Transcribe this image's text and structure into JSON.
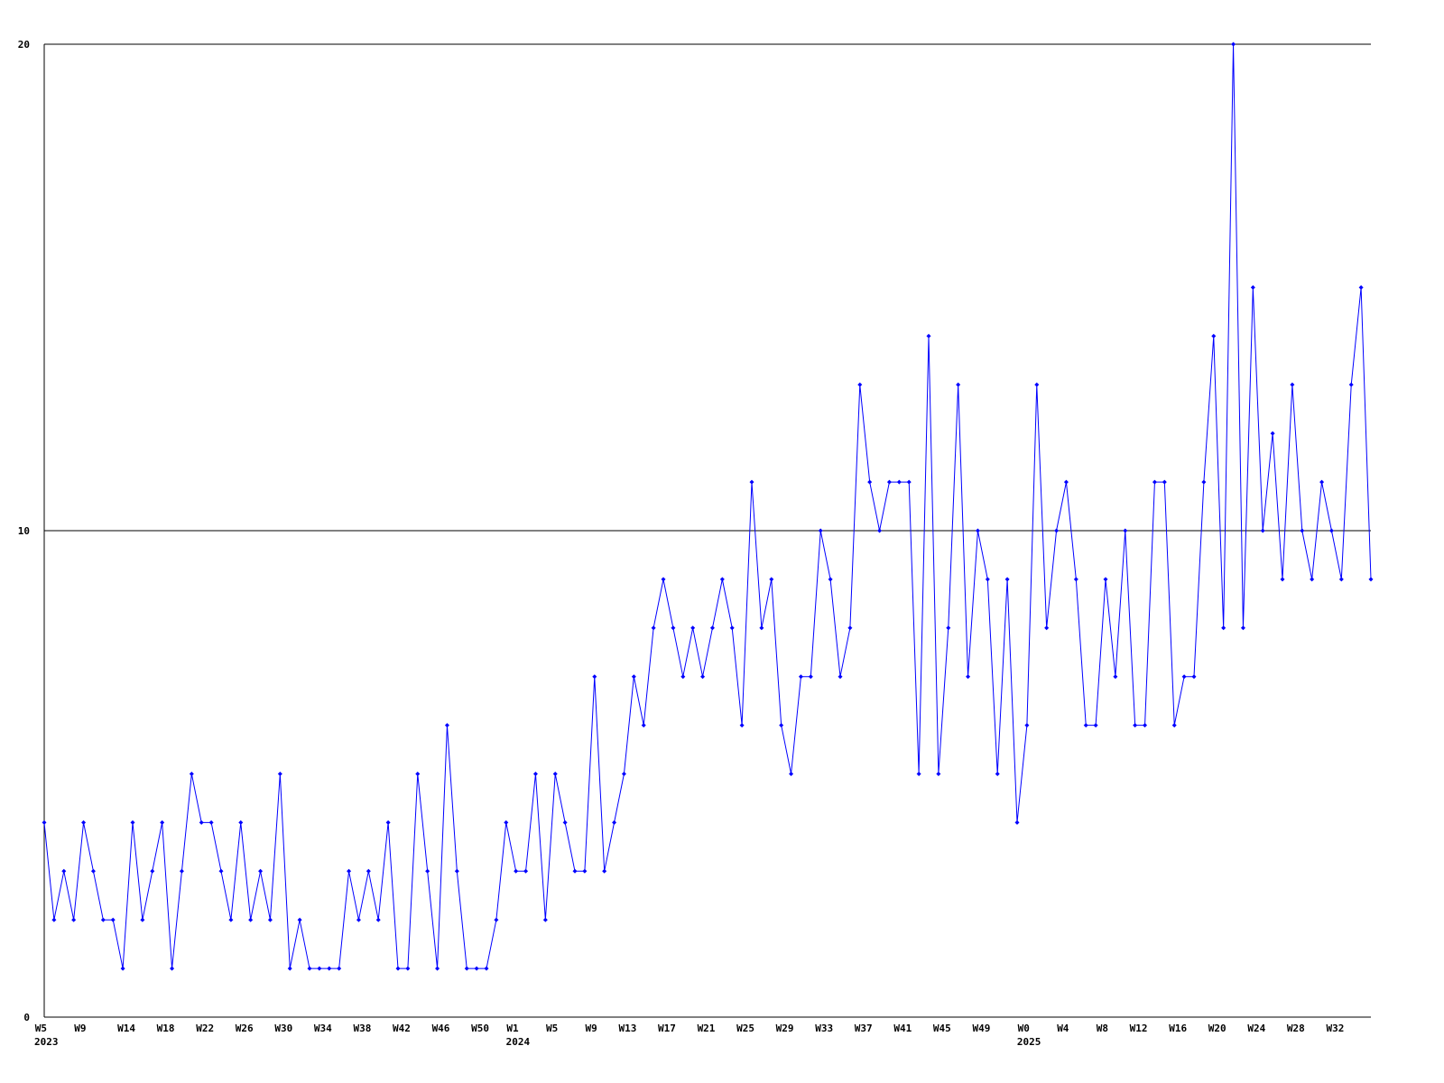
{
  "chart_data": {
    "type": "line",
    "categories": [
      "W5",
      null,
      null,
      null,
      "W9",
      null,
      null,
      null,
      null,
      "W14",
      null,
      null,
      null,
      "W18",
      null,
      null,
      null,
      "W22",
      null,
      null,
      null,
      "W26",
      null,
      null,
      null,
      "W30",
      null,
      null,
      null,
      "W34",
      null,
      null,
      null,
      "W38",
      null,
      null,
      null,
      "W42",
      null,
      null,
      null,
      "W46",
      null,
      null,
      null,
      "W50",
      null,
      null,
      "W1",
      null,
      null,
      null,
      "W5",
      null,
      null,
      null,
      "W9",
      null,
      null,
      null,
      "W13",
      null,
      null,
      null,
      "W17",
      null,
      null,
      null,
      "W21",
      null,
      null,
      null,
      "W25",
      null,
      null,
      null,
      "W29",
      null,
      null,
      null,
      "W33",
      null,
      null,
      null,
      "W37",
      null,
      null,
      null,
      "W41",
      null,
      null,
      null,
      "W45",
      null,
      null,
      null,
      "W49",
      null,
      null,
      null,
      "W0",
      null,
      null,
      null,
      "W4",
      null,
      null,
      null,
      "W8",
      null,
      null,
      null,
      "W12",
      null,
      null,
      null,
      "W16",
      null,
      null,
      null,
      "W20",
      null,
      null,
      null,
      "W24",
      null,
      null,
      null,
      "W28",
      null,
      null,
      null,
      "W32",
      null,
      null,
      null
    ],
    "year_labels": [
      "2023",
      null,
      null,
      null,
      null,
      null,
      null,
      null,
      null,
      null,
      null,
      null,
      null,
      null,
      null,
      null,
      null,
      null,
      null,
      null,
      null,
      null,
      null,
      null,
      null,
      null,
      null,
      null,
      null,
      null,
      null,
      null,
      null,
      null,
      null,
      null,
      null,
      null,
      null,
      null,
      null,
      null,
      null,
      null,
      null,
      null,
      null,
      null,
      "2024",
      null,
      null,
      null,
      null,
      null,
      null,
      null,
      null,
      null,
      null,
      null,
      null,
      null,
      null,
      null,
      null,
      null,
      null,
      null,
      null,
      null,
      null,
      null,
      null,
      null,
      null,
      null,
      null,
      null,
      null,
      null,
      null,
      null,
      null,
      null,
      null,
      null,
      null,
      null,
      null,
      null,
      null,
      null,
      null,
      null,
      null,
      null,
      null,
      null,
      null,
      null,
      "2025",
      null,
      null,
      null,
      null,
      null,
      null,
      null,
      null,
      null,
      null,
      null,
      null,
      null,
      null,
      null,
      null,
      null,
      null,
      null,
      null,
      null,
      null,
      null,
      null,
      null,
      null,
      null,
      null,
      null,
      null,
      null,
      null,
      null,
      null,
      null
    ],
    "values": [
      4,
      2,
      3,
      2,
      4,
      3,
      2,
      2,
      1,
      4,
      2,
      3,
      4,
      1,
      3,
      5,
      4,
      4,
      3,
      2,
      4,
      2,
      3,
      2,
      5,
      1,
      2,
      1,
      1,
      1,
      1,
      3,
      2,
      3,
      2,
      4,
      1,
      1,
      5,
      3,
      1,
      6,
      3,
      1,
      1,
      1,
      2,
      4,
      3,
      3,
      5,
      2,
      5,
      4,
      3,
      3,
      7,
      3,
      4,
      5,
      7,
      6,
      8,
      9,
      8,
      7,
      8,
      7,
      8,
      9,
      8,
      6,
      11,
      8,
      9,
      6,
      5,
      7,
      7,
      10,
      9,
      7,
      8,
      13,
      11,
      10,
      11,
      11,
      11,
      5,
      14,
      5,
      8,
      13,
      7,
      10,
      9,
      5,
      9,
      4,
      6,
      13,
      8,
      10,
      11,
      9,
      6,
      6,
      9,
      7,
      10,
      6,
      6,
      11,
      11,
      6,
      7,
      7,
      11,
      14,
      8,
      20,
      8,
      15,
      10,
      12,
      9,
      13,
      10,
      9,
      11,
      10,
      9,
      13,
      15,
      9
    ],
    "color": "#0000ff",
    "ylim": [
      0,
      20
    ],
    "yticks": [
      0,
      10,
      20
    ],
    "grid": true
  }
}
